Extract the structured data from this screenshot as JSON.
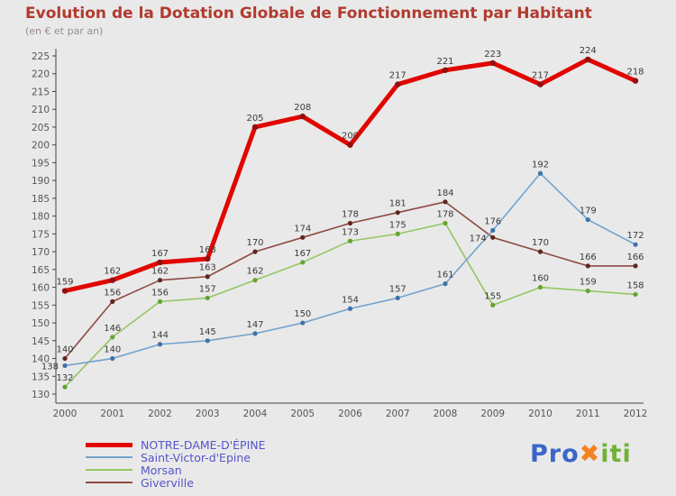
{
  "header": {
    "title": "Evolution de la Dotation Globale de Fonctionnement par Habitant",
    "subtitle": "(en € et par an)"
  },
  "theme": {
    "background": "#e9e9e9",
    "title_color": "#b23a2e",
    "subtitle_color": "#9b8d89",
    "axis_color": "#444444",
    "tick_text_color": "#555555",
    "point_label_color": "#3a3a3a",
    "legend_text_color": "#5555cc"
  },
  "chart_data": {
    "type": "line",
    "title": "Evolution de la Dotation Globale de Fonctionnement par Habitant",
    "subtitle": "(en € et par an)",
    "x": [
      2000,
      2001,
      2002,
      2003,
      2004,
      2005,
      2006,
      2007,
      2008,
      2009,
      2010,
      2011,
      2012
    ],
    "ylim": [
      130,
      225
    ],
    "ytick_step": 5,
    "grid": false,
    "legend_position": "bottom-left",
    "series": [
      {
        "name": "NOTRE-DAME-D'ÉPINE",
        "color": "#e10600",
        "marker_color": "#8f1010",
        "line_width": 5,
        "values": [
          159,
          162,
          167,
          168,
          205,
          208,
          200,
          217,
          221,
          223,
          217,
          224,
          218
        ]
      },
      {
        "name": "Saint-Victor-d'Epine",
        "color": "#74a3cd",
        "marker_color": "#3f72a8",
        "line_width": 1.6,
        "values": [
          138,
          140,
          144,
          145,
          147,
          150,
          154,
          157,
          161,
          176,
          192,
          179,
          172
        ]
      },
      {
        "name": "Morsan",
        "color": "#94c663",
        "marker_color": "#64a332",
        "line_width": 1.6,
        "values": [
          132,
          146,
          156,
          157,
          162,
          167,
          173,
          175,
          178,
          155,
          160,
          159,
          158
        ]
      },
      {
        "name": "Giverville",
        "color": "#8e4a42",
        "marker_color": "#5f2620",
        "line_width": 1.6,
        "values": [
          140,
          156,
          162,
          163,
          170,
          174,
          178,
          181,
          184,
          174,
          170,
          166,
          166
        ]
      }
    ]
  },
  "logo": {
    "parts": [
      {
        "text": "Pro",
        "color": "#3a66c8"
      },
      {
        "text": "✖",
        "color": "#f58220"
      },
      {
        "text": "iti",
        "color": "#70b235"
      }
    ]
  }
}
